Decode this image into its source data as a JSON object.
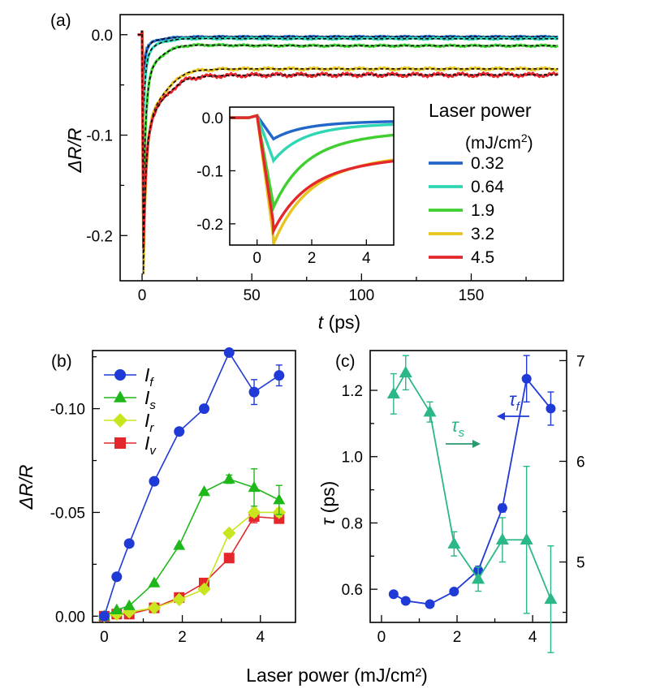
{
  "chart_data": [
    {
      "id": "a",
      "panel_label": "(a)",
      "type": "line",
      "xlabel_var": "t",
      "xlabel_unit": " (ps)",
      "ylabel": "ΔR/R",
      "xlim": [
        -10,
        192
      ],
      "ylim": [
        -0.245,
        0.02
      ],
      "xticks": [
        0,
        50,
        100,
        150
      ],
      "xtick_labels": [
        "0",
        "50",
        "100",
        "150"
      ],
      "yticks": [
        0.0,
        -0.1,
        -0.2
      ],
      "ytick_labels": [
        "0.0",
        "-0.1",
        "-0.2"
      ],
      "legend_title": "Laser power",
      "legend_unit_base": "(mJ/cm",
      "legend_unit_sup": "2",
      "legend_unit_end": ")",
      "fit_style": "black dashed",
      "series": [
        {
          "name": "0.32",
          "color": "#2166c8",
          "peak": -0.04,
          "tail": -0.002,
          "fast": -0.012,
          "dip": 0.0,
          "tau_f": 1.0,
          "tau_s": 6.0,
          "tau_r": 18.0,
          "noise": 0.0004
        },
        {
          "name": "0.64",
          "color": "#2ed6b4",
          "peak": -0.08,
          "tail": -0.004,
          "fast": -0.02,
          "dip": 0.001,
          "tau_f": 1.0,
          "tau_s": 6.0,
          "tau_r": 18.0,
          "noise": 0.0005
        },
        {
          "name": "1.9",
          "color": "#3fcf2f",
          "peak": -0.165,
          "tail": -0.011,
          "fast": -0.045,
          "dip": 0.004,
          "tau_f": 1.1,
          "tau_s": 7.0,
          "tau_r": 18.0,
          "noise": 0.0006
        },
        {
          "name": "3.2",
          "color": "#e8c41f",
          "peak": -0.225,
          "tail": -0.034,
          "fast": -0.085,
          "dip": 0.013,
          "tau_f": 1.2,
          "tau_s": 12.0,
          "tau_r": 20.0,
          "noise": 0.0008
        },
        {
          "name": "4.5",
          "color": "#e3272b",
          "peak": -0.2,
          "tail": -0.04,
          "fast": -0.085,
          "dip": 0.013,
          "tau_f": 1.2,
          "tau_s": 13.0,
          "tau_r": 20.0,
          "noise": 0.0012
        }
      ],
      "inset": {
        "xlim": [
          -1,
          5
        ],
        "ylim": [
          -0.24,
          0.02
        ],
        "xticks": [
          0,
          2,
          4
        ],
        "xtick_labels": [
          "0",
          "2",
          "4"
        ],
        "yticks": [
          0.0,
          -0.1,
          -0.2
        ],
        "ytick_labels": [
          "0.0",
          "-0.1",
          "-0.2"
        ]
      }
    },
    {
      "id": "b",
      "panel_label": "(b)",
      "type": "line",
      "xlabel": "Laser power (mJ/cm²)",
      "ylabel": "ΔR/R",
      "xlim": [
        -0.3,
        4.9
      ],
      "ylim": [
        0.003,
        -0.128
      ],
      "xticks": [
        0,
        2,
        4
      ],
      "xtick_labels": [
        "0",
        "2",
        "4"
      ],
      "yticks": [
        0.0,
        -0.05,
        -0.1
      ],
      "ytick_labels": [
        "0.00",
        "-0.05",
        "-0.10"
      ],
      "x": [
        0,
        0.32,
        0.64,
        1.28,
        1.92,
        2.56,
        3.2,
        3.84,
        4.48
      ],
      "series": [
        {
          "name": "I",
          "sub": "f",
          "color": "#1f3ad6",
          "marker": "circle",
          "values": [
            0,
            -0.019,
            -0.035,
            -0.065,
            -0.089,
            -0.1,
            -0.127,
            -0.108,
            -0.116
          ],
          "errors": [
            0,
            0,
            0,
            0,
            0,
            0,
            0,
            0.006,
            0.005
          ]
        },
        {
          "name": "I",
          "sub": "s",
          "color": "#1fb81a",
          "marker": "triangle",
          "values": [
            0,
            -0.003,
            -0.005,
            -0.016,
            -0.034,
            -0.06,
            -0.066,
            -0.062,
            -0.056
          ],
          "errors": [
            0,
            0,
            0,
            0,
            0,
            0,
            0.002,
            0.009,
            0.007
          ]
        },
        {
          "name": "I",
          "sub": "r",
          "color": "#c9e520",
          "marker": "diamond",
          "values": [
            0,
            -0.001,
            -0.002,
            -0.004,
            -0.008,
            -0.013,
            -0.04,
            -0.05,
            -0.05
          ],
          "errors": [
            0,
            0,
            0,
            0,
            0,
            0,
            0,
            0.002,
            0.002
          ]
        },
        {
          "name": "I",
          "sub": "v",
          "color": "#e3272b",
          "marker": "square",
          "values": [
            0,
            -0.001,
            -0.001,
            -0.004,
            -0.009,
            -0.016,
            -0.028,
            -0.048,
            -0.047
          ],
          "errors": [
            0,
            0,
            0,
            0,
            0,
            0,
            0,
            0.003,
            0.002
          ]
        }
      ]
    },
    {
      "id": "c",
      "panel_label": "(c)",
      "type": "line",
      "xlabel": "Laser power (mJ/cm²)",
      "ylabel_var": "τ",
      "ylabel_unit": " (ps)",
      "xlim": [
        -0.3,
        4.9
      ],
      "ylim_left": [
        0.5,
        1.32
      ],
      "ylim_right": [
        4.4,
        7.1
      ],
      "xticks": [
        0,
        2,
        4
      ],
      "xtick_labels": [
        "0",
        "2",
        "4"
      ],
      "yticks_left": [
        0.6,
        0.8,
        1.0,
        1.2
      ],
      "ytick_labels_left": [
        "0.6",
        "0.8",
        "1.0",
        "1.2"
      ],
      "yticks_right": [
        5,
        6,
        7
      ],
      "ytick_labels_right": [
        "5",
        "6",
        "7"
      ],
      "x": [
        0.32,
        0.64,
        1.28,
        1.92,
        2.56,
        3.2,
        3.84,
        4.48
      ],
      "series": [
        {
          "name": "τ",
          "sub": "f",
          "axis": "left",
          "color": "#1f3ad6",
          "marker": "circle",
          "values": [
            0.585,
            0.565,
            0.555,
            0.593,
            0.657,
            0.845,
            1.235,
            1.145
          ],
          "errors": [
            0,
            0,
            0,
            0,
            0.012,
            0.012,
            0.07,
            0.05
          ]
        },
        {
          "name": "τ",
          "sub": "s",
          "axis": "right",
          "color": "#2ab887",
          "marker": "triangle",
          "values": [
            6.67,
            6.88,
            6.49,
            5.18,
            4.83,
            5.22,
            5.22,
            4.63
          ],
          "errors": [
            0.2,
            0.17,
            0.1,
            0.12,
            0.12,
            0.22,
            0.73,
            0.53
          ]
        }
      ]
    }
  ]
}
